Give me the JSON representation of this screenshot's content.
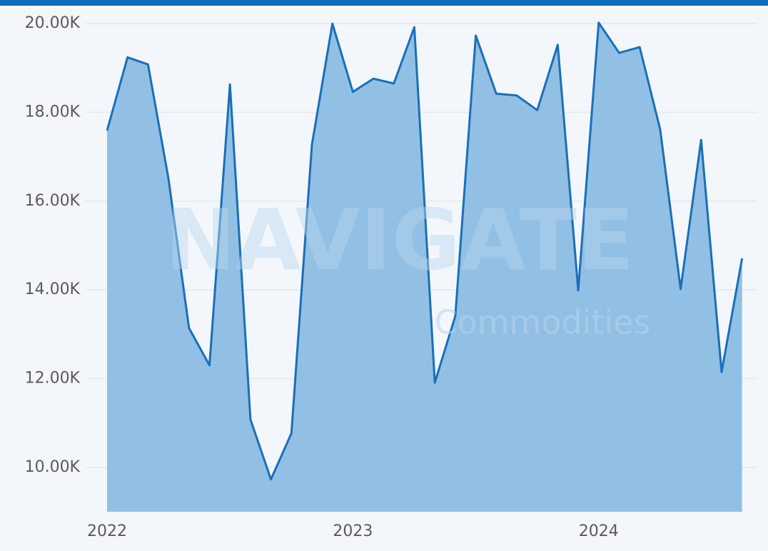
{
  "chart_data": {
    "type": "area",
    "watermark": {
      "title": "NAVIGATE",
      "subtitle": "Commodities"
    },
    "x": [
      "2022-01",
      "2022-02",
      "2022-03",
      "2022-04",
      "2022-05",
      "2022-06",
      "2022-07",
      "2022-08",
      "2022-09",
      "2022-10",
      "2022-11",
      "2022-12",
      "2023-01",
      "2023-02",
      "2023-03",
      "2023-04",
      "2023-05",
      "2023-06",
      "2023-07",
      "2023-08",
      "2023-09",
      "2023-10",
      "2023-11",
      "2023-12",
      "2024-01",
      "2024-02",
      "2024-03",
      "2024-04",
      "2024-05",
      "2024-06",
      "2024-07",
      "2024-08"
    ],
    "series": [
      {
        "color": "#1a6fba",
        "fill": "#91c0e4",
        "values": [
          17590,
          19240,
          19080,
          16500,
          13140,
          12300,
          18630,
          11080,
          9730,
          10770,
          17270,
          20000,
          18460,
          18760,
          18650,
          19920,
          11910,
          13410,
          19730,
          18420,
          18380,
          18050,
          19520,
          13990,
          20020,
          19340,
          19470,
          17620,
          14020,
          17380,
          12150,
          14710
        ]
      }
    ],
    "ylim": [
      9000,
      20500
    ],
    "yticks": [
      {
        "value": 10000,
        "label": "10.00K"
      },
      {
        "value": 12000,
        "label": "12.00K"
      },
      {
        "value": 14000,
        "label": "14.00K"
      },
      {
        "value": 16000,
        "label": "16.00K"
      },
      {
        "value": 18000,
        "label": "18.00K"
      },
      {
        "value": 20000,
        "label": "20.00K"
      }
    ],
    "xticks": [
      {
        "value": "2022-01",
        "label": "2022"
      },
      {
        "value": "2023-01",
        "label": "2023"
      },
      {
        "value": "2024-01",
        "label": "2024"
      }
    ],
    "grid": true
  }
}
